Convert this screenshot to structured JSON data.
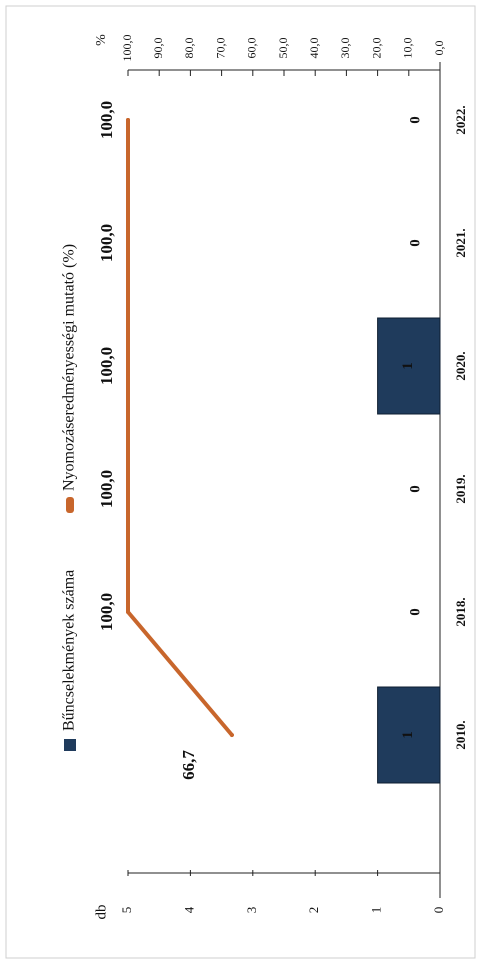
{
  "chart_data": {
    "type": "bar",
    "categories": [
      "2010.",
      "2018.",
      "2019.",
      "2020.",
      "2021.",
      "2022."
    ],
    "series": [
      {
        "name": "Bűncselekmények száma",
        "type": "bar",
        "axis": "left",
        "values": [
          1,
          0,
          0,
          1,
          0,
          0
        ],
        "value_labels": [
          "1",
          "0",
          "0",
          "1",
          "0",
          "0"
        ],
        "color": "#1f3b5c"
      },
      {
        "name": "Nyomozáseredményességi mutató (%)",
        "type": "line",
        "axis": "right",
        "values": [
          66.7,
          100.0,
          100.0,
          100.0,
          100.0,
          100.0
        ],
        "value_labels": [
          "66,7",
          "100,0",
          "100,0",
          "100,0",
          "100,0",
          "100,0"
        ],
        "color": "#c8662c"
      }
    ],
    "y_left": {
      "label": "db",
      "range": [
        0,
        5
      ],
      "ticks": [
        "0",
        "1",
        "2",
        "3",
        "4",
        "5"
      ]
    },
    "y_right": {
      "label": "%",
      "range": [
        0,
        100
      ],
      "ticks": [
        "0,0",
        "10,0",
        "20,0",
        "30,0",
        "40,0",
        "50,0",
        "60,0",
        "70,0",
        "80,0",
        "90,0",
        "100,0"
      ]
    },
    "legend_position": "top",
    "grid": false,
    "orientation": "rotated 90° clockwise"
  }
}
